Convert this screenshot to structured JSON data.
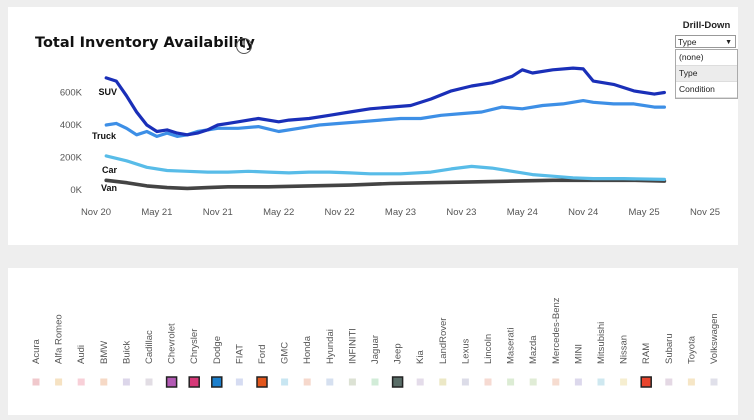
{
  "colors": {
    "suv": "#1a2fb8",
    "truck": "#3d8fe6",
    "car": "#58bce8",
    "van": "#444444"
  },
  "chart_data": {
    "type": "line",
    "title": "Total Inventory Availability",
    "x_ticks": [
      "Nov 20",
      "May 21",
      "Nov 21",
      "May 22",
      "Nov 22",
      "May 23",
      "Nov 23",
      "May 24",
      "Nov 24",
      "May 25",
      "Nov 25"
    ],
    "y_ticks": [
      "0K",
      "200K",
      "400K",
      "600K"
    ],
    "ylim": [
      0,
      800000
    ],
    "xlim": [
      "2020-11",
      "2025-11"
    ],
    "series": [
      {
        "name": "SUV",
        "color": "#1a2fb8",
        "points": [
          [
            "2020-12",
            690000
          ],
          [
            "2021-01",
            670000
          ],
          [
            "2021-02",
            580000
          ],
          [
            "2021-03",
            480000
          ],
          [
            "2021-04",
            400000
          ],
          [
            "2021-05",
            360000
          ],
          [
            "2021-06",
            370000
          ],
          [
            "2021-07",
            350000
          ],
          [
            "2021-08",
            340000
          ],
          [
            "2021-09",
            350000
          ],
          [
            "2021-10",
            370000
          ],
          [
            "2021-11",
            400000
          ],
          [
            "2021-12",
            410000
          ],
          [
            "2022-01",
            420000
          ],
          [
            "2022-03",
            440000
          ],
          [
            "2022-05",
            420000
          ],
          [
            "2022-06",
            430000
          ],
          [
            "2022-08",
            440000
          ],
          [
            "2022-10",
            460000
          ],
          [
            "2022-12",
            480000
          ],
          [
            "2023-02",
            500000
          ],
          [
            "2023-04",
            510000
          ],
          [
            "2023-06",
            520000
          ],
          [
            "2023-08",
            560000
          ],
          [
            "2023-10",
            610000
          ],
          [
            "2023-12",
            640000
          ],
          [
            "2024-02",
            660000
          ],
          [
            "2024-04",
            700000
          ],
          [
            "2024-05",
            740000
          ],
          [
            "2024-06",
            720000
          ],
          [
            "2024-08",
            740000
          ],
          [
            "2024-10",
            750000
          ],
          [
            "2024-11",
            745000
          ],
          [
            "2024-12",
            670000
          ],
          [
            "2025-02",
            650000
          ],
          [
            "2025-04",
            610000
          ],
          [
            "2025-06",
            590000
          ],
          [
            "2025-07",
            600000
          ]
        ]
      },
      {
        "name": "Truck",
        "color": "#3d8fe6",
        "points": [
          [
            "2020-12",
            400000
          ],
          [
            "2021-01",
            410000
          ],
          [
            "2021-02",
            380000
          ],
          [
            "2021-03",
            340000
          ],
          [
            "2021-04",
            360000
          ],
          [
            "2021-05",
            330000
          ],
          [
            "2021-06",
            350000
          ],
          [
            "2021-07",
            330000
          ],
          [
            "2021-08",
            340000
          ],
          [
            "2021-09",
            360000
          ],
          [
            "2021-11",
            380000
          ],
          [
            "2022-01",
            380000
          ],
          [
            "2022-03",
            390000
          ],
          [
            "2022-05",
            360000
          ],
          [
            "2022-07",
            380000
          ],
          [
            "2022-09",
            400000
          ],
          [
            "2022-11",
            410000
          ],
          [
            "2023-01",
            420000
          ],
          [
            "2023-03",
            430000
          ],
          [
            "2023-05",
            440000
          ],
          [
            "2023-07",
            440000
          ],
          [
            "2023-09",
            460000
          ],
          [
            "2023-11",
            470000
          ],
          [
            "2024-01",
            480000
          ],
          [
            "2024-03",
            510000
          ],
          [
            "2024-05",
            500000
          ],
          [
            "2024-07",
            520000
          ],
          [
            "2024-09",
            530000
          ],
          [
            "2024-11",
            550000
          ],
          [
            "2024-12",
            540000
          ],
          [
            "2025-02",
            530000
          ],
          [
            "2025-04",
            530000
          ],
          [
            "2025-06",
            510000
          ],
          [
            "2025-07",
            510000
          ]
        ]
      },
      {
        "name": "Car",
        "color": "#58bce8",
        "points": [
          [
            "2020-12",
            210000
          ],
          [
            "2021-02",
            180000
          ],
          [
            "2021-04",
            140000
          ],
          [
            "2021-06",
            120000
          ],
          [
            "2021-08",
            115000
          ],
          [
            "2021-10",
            110000
          ],
          [
            "2021-12",
            110000
          ],
          [
            "2022-02",
            115000
          ],
          [
            "2022-04",
            110000
          ],
          [
            "2022-06",
            105000
          ],
          [
            "2022-08",
            110000
          ],
          [
            "2022-10",
            110000
          ],
          [
            "2022-12",
            105000
          ],
          [
            "2023-02",
            100000
          ],
          [
            "2023-05",
            100000
          ],
          [
            "2023-08",
            110000
          ],
          [
            "2023-10",
            130000
          ],
          [
            "2023-12",
            145000
          ],
          [
            "2024-02",
            135000
          ],
          [
            "2024-04",
            115000
          ],
          [
            "2024-06",
            95000
          ],
          [
            "2024-08",
            85000
          ],
          [
            "2024-10",
            75000
          ],
          [
            "2024-12",
            70000
          ],
          [
            "2025-03",
            70000
          ],
          [
            "2025-07",
            65000
          ]
        ]
      },
      {
        "name": "Van",
        "color": "#444444",
        "points": [
          [
            "2020-12",
            60000
          ],
          [
            "2021-02",
            45000
          ],
          [
            "2021-04",
            25000
          ],
          [
            "2021-06",
            15000
          ],
          [
            "2021-08",
            10000
          ],
          [
            "2021-10",
            15000
          ],
          [
            "2021-12",
            20000
          ],
          [
            "2022-04",
            20000
          ],
          [
            "2022-08",
            25000
          ],
          [
            "2022-12",
            30000
          ],
          [
            "2023-04",
            40000
          ],
          [
            "2023-08",
            45000
          ],
          [
            "2023-12",
            50000
          ],
          [
            "2024-04",
            55000
          ],
          [
            "2024-08",
            60000
          ],
          [
            "2024-12",
            60000
          ],
          [
            "2025-04",
            60000
          ],
          [
            "2025-07",
            55000
          ]
        ]
      }
    ]
  },
  "drilldown": {
    "title": "Drill-Down",
    "selected": "Type",
    "options": [
      "(none)",
      "Type",
      "Condition"
    ]
  },
  "legend": {
    "items": [
      {
        "label": "Acura",
        "color": "#f0c8cc",
        "selected": false
      },
      {
        "label": "Alfa Romeo",
        "color": "#f6e2c2",
        "selected": false
      },
      {
        "label": "Audi",
        "color": "#f8d0d8",
        "selected": false
      },
      {
        "label": "BMW",
        "color": "#f6d9c6",
        "selected": false
      },
      {
        "label": "Buick",
        "color": "#dcd6ea",
        "selected": false
      },
      {
        "label": "Cadillac",
        "color": "#e2dde4",
        "selected": false
      },
      {
        "label": "Chevrolet",
        "color": "#b25ab4",
        "selected": true
      },
      {
        "label": "Chrysler",
        "color": "#d63878",
        "selected": true
      },
      {
        "label": "Dodge",
        "color": "#1c7fcc",
        "selected": true
      },
      {
        "label": "FIAT",
        "color": "#d6dcf2",
        "selected": false
      },
      {
        "label": "Ford",
        "color": "#e2561c",
        "selected": true
      },
      {
        "label": "GMC",
        "color": "#c8e6f2",
        "selected": false
      },
      {
        "label": "Honda",
        "color": "#f6d8cc",
        "selected": false
      },
      {
        "label": "Hyundai",
        "color": "#d6e0f0",
        "selected": false
      },
      {
        "label": "INFINITI",
        "color": "#dce2d4",
        "selected": false
      },
      {
        "label": "Jaguar",
        "color": "#d2ecd8",
        "selected": false
      },
      {
        "label": "Jeep",
        "color": "#5a6e68",
        "selected": true
      },
      {
        "label": "Kia",
        "color": "#e4dcea",
        "selected": false
      },
      {
        "label": "LandRover",
        "color": "#ece8c6",
        "selected": false
      },
      {
        "label": "Lexus",
        "color": "#dcdce8",
        "selected": false
      },
      {
        "label": "Lincoln",
        "color": "#f6dad2",
        "selected": false
      },
      {
        "label": "Maserati",
        "color": "#dcecd4",
        "selected": false
      },
      {
        "label": "Mazda",
        "color": "#e0ecd6",
        "selected": false
      },
      {
        "label": "Mercedes-Benz",
        "color": "#f6dcd0",
        "selected": false
      },
      {
        "label": "MINI",
        "color": "#dcd8ec",
        "selected": false
      },
      {
        "label": "Mitsubishi",
        "color": "#cfe8f0",
        "selected": false
      },
      {
        "label": "Nissan",
        "color": "#f6eed0",
        "selected": false
      },
      {
        "label": "RAM",
        "color": "#e8452e",
        "selected": true
      },
      {
        "label": "Subaru",
        "color": "#e4d8e4",
        "selected": false
      },
      {
        "label": "Toyota",
        "color": "#f6e6c6",
        "selected": false
      },
      {
        "label": "Volkswagen",
        "color": "#e0e0ea",
        "selected": false
      }
    ]
  }
}
